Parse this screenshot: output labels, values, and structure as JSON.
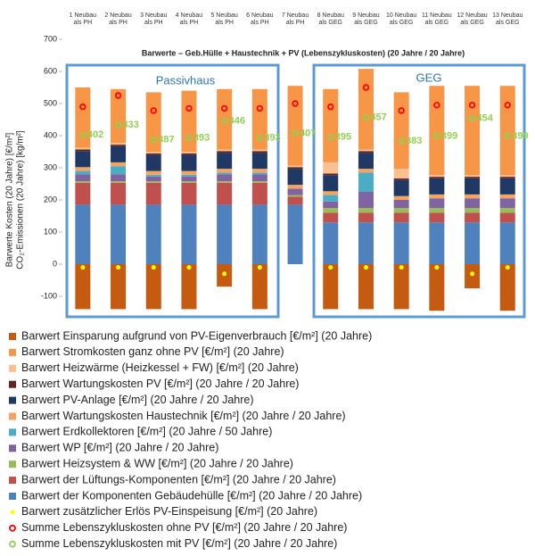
{
  "chart_data": {
    "type": "bar",
    "title": "Barwerte – Geb.Hülle + Haustechnik + PV (Lebenszykluskosten) (20 Jahre / 20 Jahre)",
    "y_label": [
      "Barwerte Kosten (20 Jahre) [€/m²]",
      "CO₂-Emissionen (20 Jahre) [kg/m²]"
    ],
    "annotations": [
      "Passivhaus",
      "GEG"
    ],
    "categories": [
      "1 Neubau als PH",
      "2 Neubau als PH",
      "3 Neubau als PH",
      "4 Neubau als PH",
      "5 Neubau als PH",
      "6 Neubau als PH",
      "7 Neubau als PH",
      "8 Neubau als GEG",
      "9 Neubau als GEG",
      "10 Neubau als GEG",
      "11 Neubau als GEG",
      "12 Neubau als GEG",
      "13 Neubau als GEG"
    ],
    "ylim": [
      -150,
      700
    ],
    "yticks": [
      -100,
      0,
      100,
      200,
      300,
      400,
      500,
      600,
      700
    ],
    "series": [
      {
        "name": "Barwert Einsparung aufgrund von PV-Eigenverbrauch [€/m²] (20 Jahre)",
        "color": "#c55a11",
        "values": [
          -140,
          -140,
          -140,
          -140,
          -70,
          -140,
          0,
          -140,
          -140,
          -140,
          -145,
          -75,
          -145
        ]
      },
      {
        "name": "Barwert Stromkosten ganz ohne PV [€/m²] (20 Jahre)",
        "color": "#f79646",
        "values": [
          188,
          168,
          185,
          190,
          188,
          188,
          248,
          228,
          251,
          238,
          278,
          278,
          278
        ]
      },
      {
        "name": "Barwert Heizwärme (Heizkessel + FW) [€/m²] (20 Jahre)",
        "color": "#fac090",
        "values": [
          5,
          5,
          5,
          5,
          5,
          5,
          5,
          35,
          5,
          30,
          5,
          5,
          5
        ]
      },
      {
        "name": "Barwert Wartungskosten PV [€/m²] (20 Jahre / 20 Jahre)",
        "color": "#632523",
        "values": [
          5,
          5,
          5,
          5,
          5,
          5,
          5,
          5,
          5,
          5,
          5,
          5,
          5
        ]
      },
      {
        "name": "Barwert PV-Anlage [€/m²] (20 Jahre / 20 Jahre)",
        "color": "#1f3864",
        "values": [
          50,
          50,
          50,
          50,
          50,
          50,
          50,
          50,
          50,
          50,
          50,
          50,
          50
        ]
      },
      {
        "name": "Barwert Wartungskosten Haustechnik [€/m²] (20 Jahre / 20 Jahre)",
        "color": "#f4a460",
        "values": [
          12,
          12,
          12,
          12,
          12,
          12,
          12,
          12,
          12,
          12,
          12,
          12,
          12
        ]
      },
      {
        "name": "Barwert Erdkollektoren [€/m²] (20 Jahre / 50 Jahre)",
        "color": "#4bacc6",
        "values": [
          10,
          25,
          5,
          5,
          5,
          5,
          0,
          20,
          60,
          0,
          0,
          0,
          0
        ]
      },
      {
        "name": "Barwert WP [€/m²] (20 Jahre / 20 Jahre)",
        "color": "#8064a2",
        "values": [
          22,
          22,
          15,
          15,
          22,
          22,
          20,
          20,
          50,
          25,
          30,
          30,
          30
        ]
      },
      {
        "name": "Barwert Heizsystem & WW [€/m²] (20 Jahre / 20 Jahre)",
        "color": "#9bbb59",
        "values": [
          5,
          5,
          5,
          5,
          5,
          5,
          5,
          15,
          15,
          15,
          15,
          15,
          15
        ]
      },
      {
        "name": "Barwert der Lüftungs-Komponenten [€/m²] (20 Jahre / 20 Jahre)",
        "color": "#c0504d",
        "values": [
          68,
          68,
          68,
          68,
          68,
          68,
          25,
          30,
          30,
          30,
          30,
          30,
          30
        ]
      },
      {
        "name": "Barwert der Komponenten Gebäudehülle [€/m²] (20 Jahre / 20 Jahre)",
        "color": "#4f81bd",
        "values": [
          185,
          185,
          185,
          185,
          185,
          185,
          185,
          130,
          130,
          130,
          130,
          130,
          130
        ]
      },
      {
        "name": "Barwert zusätzlicher Erlös PV-Einspeisung [€/m²] (20 Jahre)",
        "type": "scatter",
        "color": "#ffff00",
        "values": [
          -10,
          -10,
          -10,
          -10,
          -30,
          -10,
          null,
          -10,
          -10,
          -10,
          -10,
          -30,
          -10
        ]
      },
      {
        "name": "Summe Lebenszykluskosten ohne PV [€/m²] (20 Jahre / 20 Jahre)",
        "type": "scatter",
        "color": "#ff0000",
        "values": [
          490,
          525,
          478,
          485,
          485,
          485,
          500,
          490,
          550,
          478,
          495,
          495,
          495
        ]
      },
      {
        "name": "Summe Lebenszykluskosten mit PV [€/m²] (20 Jahre / 20 Jahre)",
        "type": "scatter",
        "color": "#92d050",
        "values": [
          402,
          433,
          387,
          393,
          446,
          393,
          407,
          395,
          457,
          383,
          399,
          454,
          399
        ]
      }
    ]
  }
}
